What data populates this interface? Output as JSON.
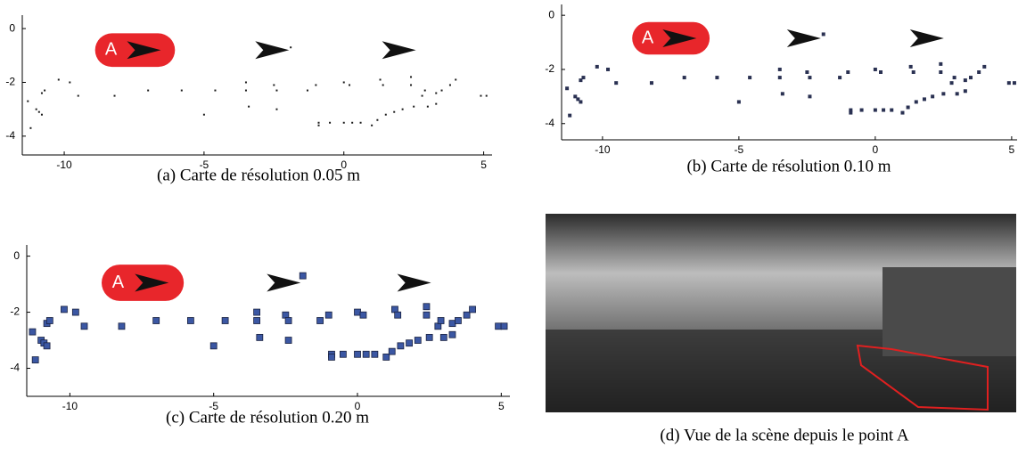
{
  "chart_data": [
    {
      "type": "scatter",
      "caption": "(a) Carte de résolution 0.05 m",
      "annotation": "A",
      "color": "#1a1a1a",
      "marker_size": 2,
      "xlim": [
        -11.5,
        5.3
      ],
      "ylim": [
        -4.7,
        0.5
      ],
      "xticks": [
        -10,
        -5,
        0,
        5
      ],
      "yticks": [
        -4,
        -2,
        0
      ],
      "x": [
        -11.3,
        -11.2,
        -11.0,
        -10.9,
        -10.8,
        -10.8,
        -10.7,
        -10.2,
        -9.8,
        -9.5,
        -8.2,
        -7.0,
        -5.8,
        -5.0,
        -4.6,
        -3.5,
        -3.5,
        -3.4,
        -2.5,
        -2.4,
        -2.4,
        -1.9,
        -1.3,
        -1.0,
        -0.9,
        -0.9,
        -0.5,
        0.0,
        0.3,
        0.6,
        1.0,
        1.2,
        1.5,
        1.8,
        2.1,
        2.5,
        3.0,
        3.3,
        0.0,
        0.2,
        1.3,
        1.4,
        2.4,
        2.4,
        2.8,
        2.9,
        3.3,
        3.5,
        3.8,
        4.0,
        4.9,
        5.1
      ],
      "y": [
        -2.7,
        -3.7,
        -3.0,
        -3.1,
        -3.2,
        -2.4,
        -2.3,
        -1.9,
        -2.0,
        -2.5,
        -2.5,
        -2.3,
        -2.3,
        -3.2,
        -2.3,
        -2.3,
        -2.0,
        -2.9,
        -2.1,
        -2.3,
        -3.0,
        -0.7,
        -2.3,
        -2.1,
        -3.5,
        -3.6,
        -3.5,
        -3.5,
        -3.5,
        -3.5,
        -3.6,
        -3.4,
        -3.2,
        -3.1,
        -3.0,
        -2.9,
        -2.9,
        -2.8,
        -2.0,
        -2.1,
        -1.9,
        -2.1,
        -1.8,
        -2.1,
        -2.5,
        -2.3,
        -2.4,
        -2.3,
        -2.1,
        -1.9,
        -2.5,
        -2.5
      ]
    },
    {
      "type": "scatter",
      "caption": "(b) Carte de résolution 0.10 m",
      "annotation": "A",
      "color": "#2a3152",
      "marker_size": 4,
      "xlim": [
        -11.5,
        5.2
      ],
      "ylim": [
        -4.6,
        0.4
      ],
      "xticks": [
        -10,
        -5,
        0,
        5
      ],
      "yticks": [
        -4,
        -2,
        0
      ],
      "x": [
        -11.3,
        -11.2,
        -11.0,
        -10.9,
        -10.8,
        -10.8,
        -10.7,
        -10.2,
        -9.8,
        -9.5,
        -8.2,
        -7.0,
        -5.8,
        -5.0,
        -4.6,
        -3.5,
        -3.5,
        -3.4,
        -2.5,
        -2.4,
        -2.4,
        -1.9,
        -1.3,
        -1.0,
        -0.9,
        -0.9,
        -0.5,
        0.0,
        0.3,
        0.6,
        1.0,
        1.2,
        1.5,
        1.8,
        2.1,
        2.5,
        3.0,
        3.3,
        0.0,
        0.2,
        1.3,
        1.4,
        2.4,
        2.4,
        2.8,
        2.9,
        3.3,
        3.5,
        3.8,
        4.0,
        4.9,
        5.1
      ],
      "y": [
        -2.7,
        -3.7,
        -3.0,
        -3.1,
        -3.2,
        -2.4,
        -2.3,
        -1.9,
        -2.0,
        -2.5,
        -2.5,
        -2.3,
        -2.3,
        -3.2,
        -2.3,
        -2.3,
        -2.0,
        -2.9,
        -2.1,
        -2.3,
        -3.0,
        -0.7,
        -2.3,
        -2.1,
        -3.5,
        -3.6,
        -3.5,
        -3.5,
        -3.5,
        -3.5,
        -3.6,
        -3.4,
        -3.2,
        -3.1,
        -3.0,
        -2.9,
        -2.9,
        -2.8,
        -2.0,
        -2.1,
        -1.9,
        -2.1,
        -1.8,
        -2.1,
        -2.5,
        -2.3,
        -2.4,
        -2.3,
        -2.1,
        -1.9,
        -2.5,
        -2.5
      ]
    },
    {
      "type": "scatter",
      "caption": "(c) Carte de résolution 0.20 m",
      "annotation": "A",
      "color": "#3b57a3",
      "marker_size": 7,
      "xlim": [
        -11.5,
        5.3
      ],
      "ylim": [
        -5,
        0.4
      ],
      "xticks": [
        -10,
        -5,
        0,
        5
      ],
      "yticks": [
        -4,
        -2,
        0
      ],
      "x": [
        -11.3,
        -11.2,
        -11.0,
        -10.9,
        -10.8,
        -10.8,
        -10.7,
        -10.2,
        -9.8,
        -9.5,
        -8.2,
        -7.0,
        -5.8,
        -5.0,
        -4.6,
        -3.5,
        -3.5,
        -3.4,
        -2.5,
        -2.4,
        -2.4,
        -1.9,
        -1.3,
        -1.0,
        -0.9,
        -0.9,
        -0.5,
        0.0,
        0.3,
        0.6,
        1.0,
        1.2,
        1.5,
        1.8,
        2.1,
        2.5,
        3.0,
        3.3,
        0.0,
        0.2,
        1.3,
        1.4,
        2.4,
        2.4,
        2.8,
        2.9,
        3.3,
        3.5,
        3.8,
        4.0,
        4.9,
        5.1
      ],
      "y": [
        -2.7,
        -3.7,
        -3.0,
        -3.1,
        -3.2,
        -2.4,
        -2.3,
        -1.9,
        -2.0,
        -2.5,
        -2.5,
        -2.3,
        -2.3,
        -3.2,
        -2.3,
        -2.3,
        -2.0,
        -2.9,
        -2.1,
        -2.3,
        -3.0,
        -0.7,
        -2.3,
        -2.1,
        -3.5,
        -3.6,
        -3.5,
        -3.5,
        -3.5,
        -3.5,
        -3.6,
        -3.4,
        -3.2,
        -3.1,
        -3.0,
        -2.9,
        -2.9,
        -2.8,
        -2.0,
        -2.1,
        -1.9,
        -2.1,
        -1.8,
        -2.1,
        -2.5,
        -2.3,
        -2.4,
        -2.3,
        -2.1,
        -1.9,
        -2.5,
        -2.5
      ]
    }
  ],
  "photo": {
    "caption": "(d) Vue de la scène depuis le point A"
  }
}
